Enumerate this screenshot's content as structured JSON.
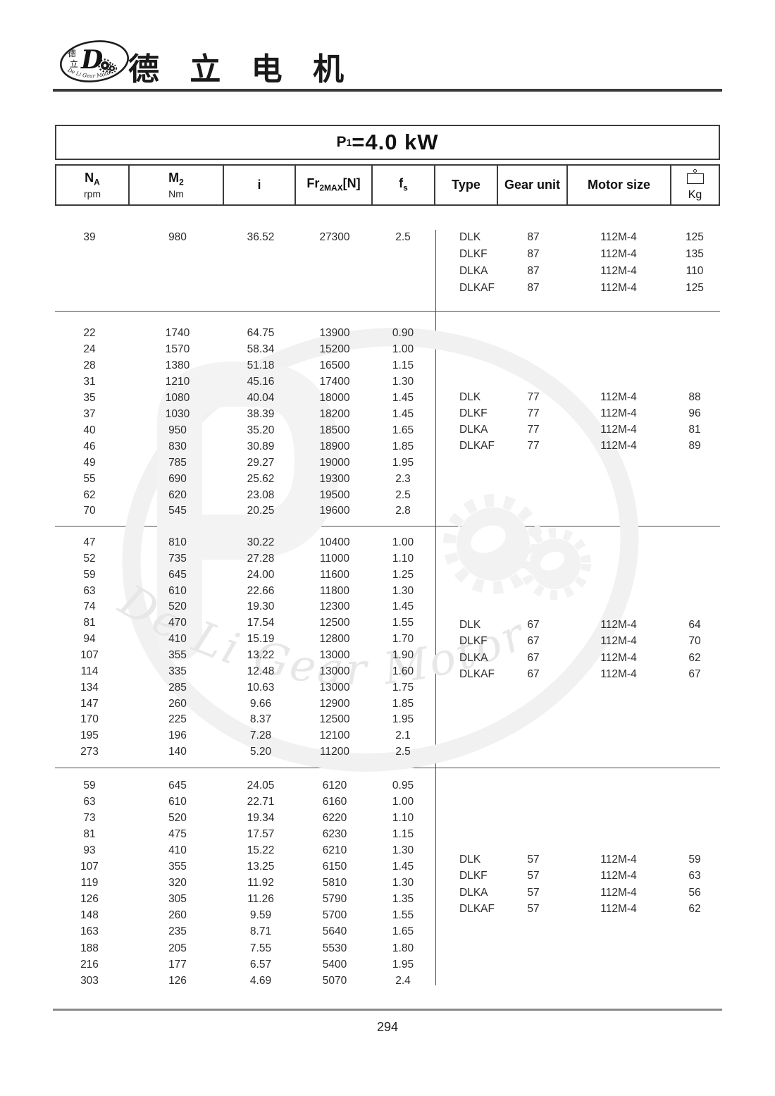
{
  "brand": {
    "title": "德 立 电 机",
    "logo_char_top": "德",
    "logo_char_bottom": "立",
    "logo_monogram": "D",
    "logo_arc_text": "De Li Gear Motor"
  },
  "power_title": {
    "p": "P",
    "p_sub": "1",
    "value": "=4.0 kW"
  },
  "columns": [
    {
      "main": "N",
      "sub": "A",
      "unit": "rpm"
    },
    {
      "main": "M",
      "sub": "2",
      "unit": "Nm"
    },
    {
      "main": "i"
    },
    {
      "main": "Fr",
      "sub": "2MAX",
      "suffix": "[N]"
    },
    {
      "main": "f",
      "sub": "s"
    },
    {
      "main": "Type"
    },
    {
      "main": "Gear unit"
    },
    {
      "main": "Motor size"
    },
    {
      "label": "Kg"
    }
  ],
  "groups": [
    {
      "rows": [
        [
          "39",
          "980",
          "36.52",
          "27300",
          "2.5"
        ]
      ],
      "types": [
        [
          "DLK",
          "87",
          "112M-4",
          "125"
        ],
        [
          "DLKF",
          "87",
          "112M-4",
          "135"
        ],
        [
          "DLKA",
          "87",
          "112M-4",
          "110"
        ],
        [
          "DLKAF",
          "87",
          "112M-4",
          "125"
        ]
      ]
    },
    {
      "rows": [
        [
          "22",
          "1740",
          "64.75",
          "13900",
          "0.90"
        ],
        [
          "24",
          "1570",
          "58.34",
          "15200",
          "1.00"
        ],
        [
          "28",
          "1380",
          "51.18",
          "16500",
          "1.15"
        ],
        [
          "31",
          "1210",
          "45.16",
          "17400",
          "1.30"
        ],
        [
          "35",
          "1080",
          "40.04",
          "18000",
          "1.45"
        ],
        [
          "37",
          "1030",
          "38.39",
          "18200",
          "1.45"
        ],
        [
          "40",
          "950",
          "35.20",
          "18500",
          "1.65"
        ],
        [
          "46",
          "830",
          "30.89",
          "18900",
          "1.85"
        ],
        [
          "49",
          "785",
          "29.27",
          "19000",
          "1.95"
        ],
        [
          "55",
          "690",
          "25.62",
          "19300",
          "2.3"
        ],
        [
          "62",
          "620",
          "23.08",
          "19500",
          "2.5"
        ],
        [
          "70",
          "545",
          "20.25",
          "19600",
          "2.8"
        ]
      ],
      "types": [
        [
          "DLK",
          "77",
          "112M-4",
          "88"
        ],
        [
          "DLKF",
          "77",
          "112M-4",
          "96"
        ],
        [
          "DLKA",
          "77",
          "112M-4",
          "81"
        ],
        [
          "DLKAF",
          "77",
          "112M-4",
          "89"
        ]
      ]
    },
    {
      "rows": [
        [
          "47",
          "810",
          "30.22",
          "10400",
          "1.00"
        ],
        [
          "52",
          "735",
          "27.28",
          "11000",
          "1.10"
        ],
        [
          "59",
          "645",
          "24.00",
          "11600",
          "1.25"
        ],
        [
          "63",
          "610",
          "22.66",
          "11800",
          "1.30"
        ],
        [
          "74",
          "520",
          "19.30",
          "12300",
          "1.45"
        ],
        [
          "81",
          "470",
          "17.54",
          "12500",
          "1.55"
        ],
        [
          "94",
          "410",
          "15.19",
          "12800",
          "1.70"
        ],
        [
          "107",
          "355",
          "13.22",
          "13000",
          "1.90"
        ],
        [
          "114",
          "335",
          "12.48",
          "13000",
          "1.60"
        ],
        [
          "134",
          "285",
          "10.63",
          "13000",
          "1.75"
        ],
        [
          "147",
          "260",
          "9.66",
          "12900",
          "1.85"
        ],
        [
          "170",
          "225",
          "8.37",
          "12500",
          "1.95"
        ],
        [
          "195",
          "196",
          "7.28",
          "12100",
          "2.1"
        ],
        [
          "273",
          "140",
          "5.20",
          "11200",
          "2.5"
        ]
      ],
      "types": [
        [
          "DLK",
          "67",
          "112M-4",
          "64"
        ],
        [
          "DLKF",
          "67",
          "112M-4",
          "70"
        ],
        [
          "DLKA",
          "67",
          "112M-4",
          "62"
        ],
        [
          "DLKAF",
          "67",
          "112M-4",
          "67"
        ]
      ]
    },
    {
      "rows": [
        [
          "59",
          "645",
          "24.05",
          "6120",
          "0.95"
        ],
        [
          "63",
          "610",
          "22.71",
          "6160",
          "1.00"
        ],
        [
          "73",
          "520",
          "19.34",
          "6220",
          "1.10"
        ],
        [
          "81",
          "475",
          "17.57",
          "6230",
          "1.15"
        ],
        [
          "93",
          "410",
          "15.22",
          "6210",
          "1.30"
        ],
        [
          "107",
          "355",
          "13.25",
          "6150",
          "1.45"
        ],
        [
          "119",
          "320",
          "11.92",
          "5810",
          "1.30"
        ],
        [
          "126",
          "305",
          "11.26",
          "5790",
          "1.35"
        ],
        [
          "148",
          "260",
          "9.59",
          "5700",
          "1.55"
        ],
        [
          "163",
          "235",
          "8.71",
          "5640",
          "1.65"
        ],
        [
          "188",
          "205",
          "7.55",
          "5530",
          "1.80"
        ],
        [
          "216",
          "177",
          "6.57",
          "5400",
          "1.95"
        ],
        [
          "303",
          "126",
          "4.69",
          "5070",
          "2.4"
        ]
      ],
      "types": [
        [
          "DLK",
          "57",
          "112M-4",
          "59"
        ],
        [
          "DLKF",
          "57",
          "112M-4",
          "63"
        ],
        [
          "DLKA",
          "57",
          "112M-4",
          "56"
        ],
        [
          "DLKAF",
          "57",
          "112M-4",
          "62"
        ]
      ]
    }
  ],
  "watermark": {
    "text": "De Li Gear Motor"
  },
  "footer": {
    "page": "294"
  }
}
